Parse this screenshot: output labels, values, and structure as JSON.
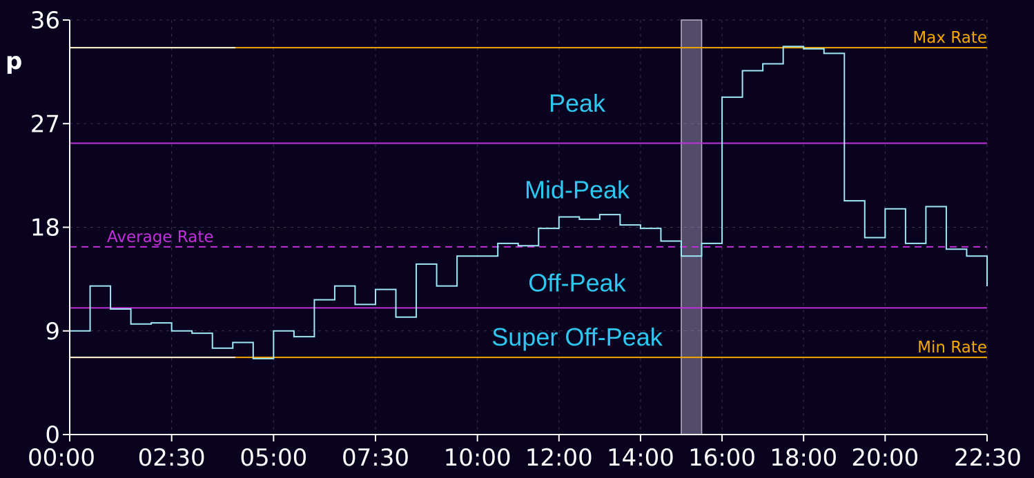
{
  "chart_data": {
    "type": "line",
    "step": true,
    "ylabel": "p",
    "ylim": [
      0,
      36
    ],
    "yticks": [
      0,
      9,
      18,
      27,
      36
    ],
    "xlim": [
      "00:00",
      "22:30"
    ],
    "xticks": [
      "00:00",
      "02:30",
      "05:00",
      "07:30",
      "10:00",
      "12:00",
      "14:00",
      "16:00",
      "18:00",
      "20:00",
      "22:30"
    ],
    "grid": true,
    "series": [
      {
        "color": "#9fe8f5",
        "x": [
          "00:00",
          "00:30",
          "01:00",
          "01:30",
          "02:00",
          "02:30",
          "03:00",
          "03:30",
          "04:00",
          "04:30",
          "05:00",
          "05:30",
          "06:00",
          "06:30",
          "07:00",
          "07:30",
          "08:00",
          "08:30",
          "09:00",
          "09:30",
          "10:00",
          "10:30",
          "11:00",
          "11:30",
          "12:00",
          "12:30",
          "13:00",
          "13:30",
          "14:00",
          "14:30",
          "15:00",
          "15:30",
          "16:00",
          "16:30",
          "17:00",
          "17:30",
          "18:00",
          "18:30",
          "19:00",
          "19:30",
          "20:00",
          "20:30",
          "21:00",
          "21:30",
          "22:00",
          "22:30"
        ],
        "values": [
          9.0,
          12.9,
          10.9,
          9.6,
          9.7,
          9.0,
          8.8,
          7.5,
          8.0,
          6.6,
          9.0,
          8.5,
          11.7,
          12.9,
          11.3,
          12.6,
          10.2,
          14.8,
          12.9,
          15.5,
          15.5,
          16.6,
          16.4,
          17.9,
          18.9,
          18.7,
          19.1,
          18.2,
          17.9,
          16.8,
          15.5,
          16.6,
          29.3,
          31.6,
          32.2,
          33.7,
          33.5,
          33.1,
          20.3,
          17.1,
          19.6,
          16.6,
          19.8,
          16.1,
          15.5,
          14.2
        ]
      }
    ],
    "reference_lines": [
      {
        "name": "Max Rate",
        "value": 33.6,
        "color": "#f5a800",
        "style": "solid"
      },
      {
        "name": "Average Rate",
        "value": 16.3,
        "color": "#c030d8",
        "style": "dashed"
      },
      {
        "name": "Min Rate",
        "value": 6.7,
        "color": "#f5a800",
        "style": "solid"
      }
    ],
    "zone_boundaries": [
      {
        "value": 25.3,
        "color": "#c030d8"
      },
      {
        "value": 11.0,
        "color": "#c030d8"
      }
    ],
    "zones": [
      {
        "name": "Peak",
        "y": 28.8
      },
      {
        "name": "Mid-Peak",
        "y": 21.3
      },
      {
        "name": "Off-Peak",
        "y": 13.2
      },
      {
        "name": "Super Off-Peak",
        "y": 8.5
      }
    ],
    "highlight": {
      "from": "15:00",
      "to": "15:30"
    }
  }
}
